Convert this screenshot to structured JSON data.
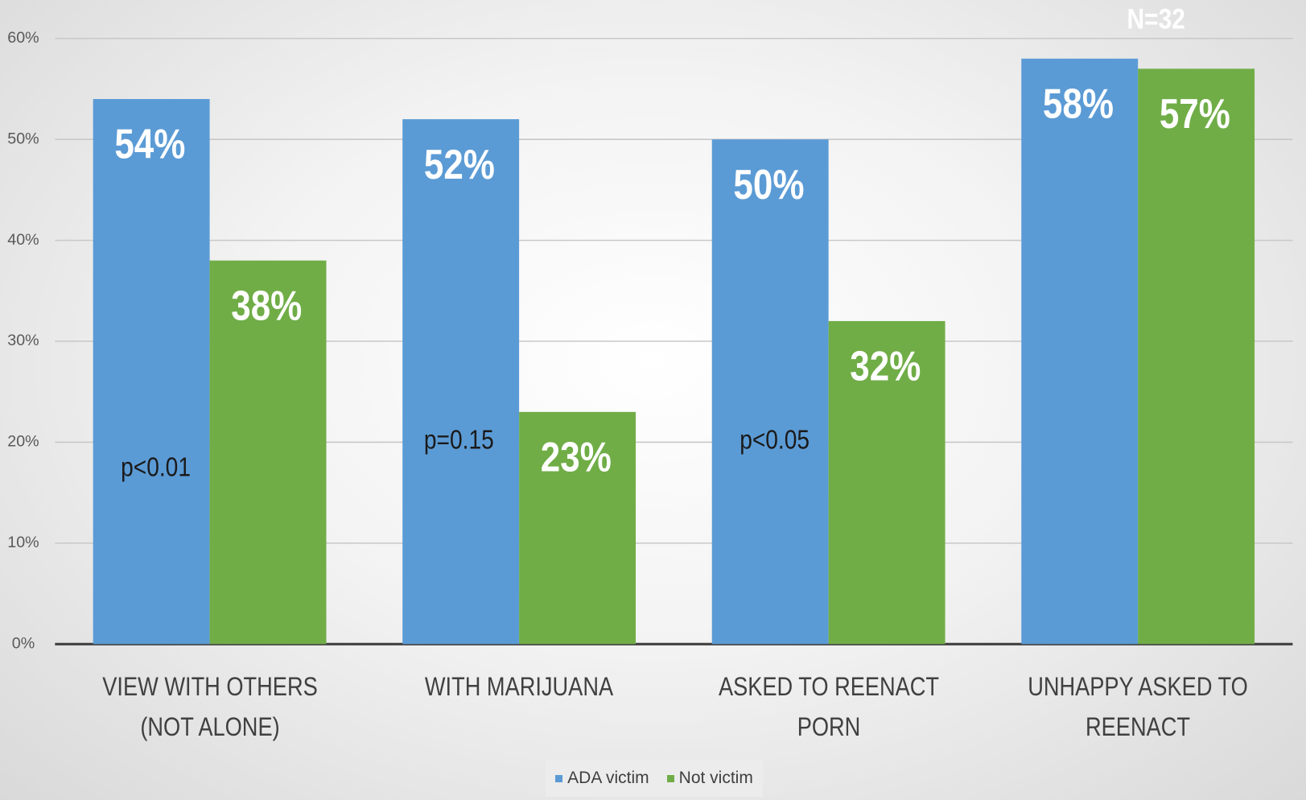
{
  "chart_data": {
    "type": "bar",
    "categories": [
      "VIEW WITH OTHERS (NOT ALONE)",
      "WITH MARIJUANA",
      "ASKED TO REENACT PORN",
      "UNHAPPY ASKED TO REENACT"
    ],
    "series": [
      {
        "name": "ADA victim",
        "color": "#5b9bd5",
        "values": [
          54,
          52,
          50,
          58
        ],
        "value_labels": [
          "54%",
          "52%",
          "50%",
          "58%"
        ]
      },
      {
        "name": "Not victim",
        "color": "#70ad47",
        "values": [
          38,
          23,
          32,
          57
        ],
        "value_labels": [
          "38%",
          "23%",
          "32%",
          "57%"
        ]
      }
    ],
    "ylim": [
      0,
      60
    ],
    "yticks": [
      {
        "value": 0,
        "label": "0%"
      },
      {
        "value": 10,
        "label": "10%"
      },
      {
        "value": 20,
        "label": "20%"
      },
      {
        "value": 30,
        "label": "30%"
      },
      {
        "value": 40,
        "label": "40%"
      },
      {
        "value": 50,
        "label": "50%"
      },
      {
        "value": 60,
        "label": "60%"
      }
    ],
    "grid": true,
    "annotations": [
      "p<0.01",
      "p=0.15",
      "p<0.05",
      "N=32"
    ],
    "legend": "bottom"
  }
}
